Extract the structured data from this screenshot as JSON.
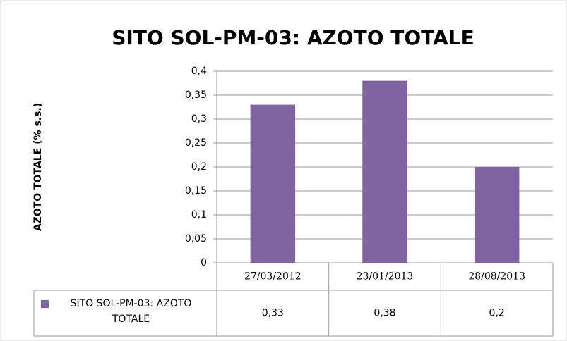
{
  "chart_data": {
    "type": "bar",
    "title": "SITO SOL-PM-03: AZOTO TOTALE",
    "y_label": "AZOTO TOTALE (% s.s.)",
    "categories": [
      "27/03/2012",
      "23/01/2013",
      "28/08/2013"
    ],
    "series": [
      {
        "name": "SITO SOL-PM-03: AZOTO TOTALE",
        "color": "#8064a2",
        "values": [
          0.33,
          0.38,
          0.2
        ],
        "value_labels": [
          "0,33",
          "0,38",
          "0,2"
        ]
      }
    ],
    "ylim": [
      0,
      0.4
    ],
    "yticks": [
      0,
      {
        "value": 0.05,
        "label": "0,05"
      },
      {
        "value": 0.1,
        "label": "0,1"
      },
      {
        "value": 0.15,
        "label": "0,15"
      },
      {
        "value": 0.2,
        "label": "0,2"
      },
      {
        "value": 0.25,
        "label": "0,25"
      },
      {
        "value": 0.3,
        "label": "0,3"
      },
      {
        "value": 0.35,
        "label": "0,35"
      },
      {
        "value": 0.4,
        "label": "0,4"
      }
    ],
    "grid": true,
    "data_table": true
  }
}
